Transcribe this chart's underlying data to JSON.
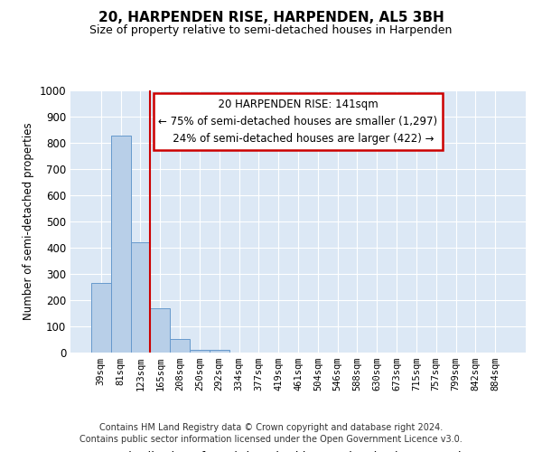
{
  "title1": "20, HARPENDEN RISE, HARPENDEN, AL5 3BH",
  "title2": "Size of property relative to semi-detached houses in Harpenden",
  "xlabel": "Distribution of semi-detached houses by size in Harpenden",
  "ylabel": "Number of semi-detached properties",
  "categories": [
    "39sqm",
    "81sqm",
    "123sqm",
    "165sqm",
    "208sqm",
    "250sqm",
    "292sqm",
    "334sqm",
    "377sqm",
    "419sqm",
    "461sqm",
    "504sqm",
    "546sqm",
    "588sqm",
    "630sqm",
    "673sqm",
    "715sqm",
    "757sqm",
    "799sqm",
    "842sqm",
    "884sqm"
  ],
  "values": [
    265,
    828,
    422,
    170,
    52,
    12,
    12,
    0,
    0,
    0,
    0,
    0,
    0,
    0,
    0,
    0,
    0,
    0,
    0,
    0,
    0
  ],
  "bar_color": "#b8cfe8",
  "bar_edge_color": "#6699cc",
  "property_line_x": 2.5,
  "property_sqm": 141,
  "pct_smaller": 75,
  "count_smaller": 1297,
  "pct_larger": 24,
  "count_larger": 422,
  "annotation_box_color": "#cc0000",
  "ylim": [
    0,
    1000
  ],
  "yticks": [
    0,
    100,
    200,
    300,
    400,
    500,
    600,
    700,
    800,
    900,
    1000
  ],
  "footnote1": "Contains HM Land Registry data © Crown copyright and database right 2024.",
  "footnote2": "Contains public sector information licensed under the Open Government Licence v3.0.",
  "bg_color": "#dce8f5",
  "grid_color": "#ffffff"
}
